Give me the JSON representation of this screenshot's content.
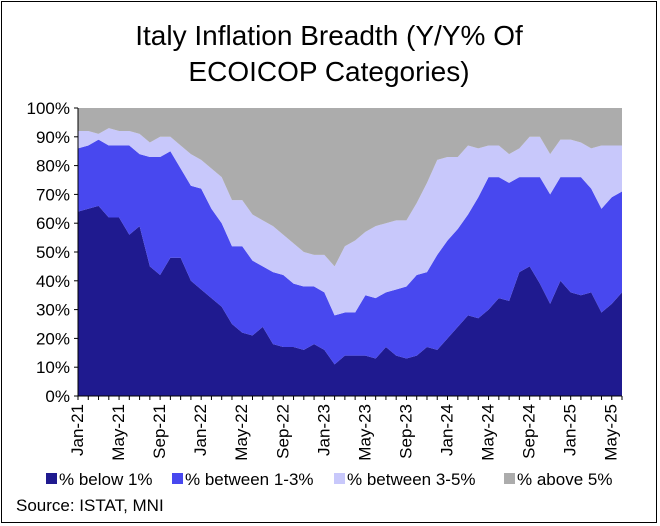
{
  "chart_data": {
    "type": "area",
    "stacked": true,
    "title_line1": "Italy Inflation Breadth (Y/Y% Of",
    "title_line2": "ECOICOP Categories)",
    "ylim": [
      0,
      100
    ],
    "yticks": [
      "0%",
      "10%",
      "20%",
      "30%",
      "40%",
      "50%",
      "60%",
      "70%",
      "80%",
      "90%",
      "100%"
    ],
    "ytick_values": [
      0,
      10,
      20,
      30,
      40,
      50,
      60,
      70,
      80,
      90,
      100
    ],
    "xtick_labels": [
      "Jan-21",
      "May-21",
      "Sep-21",
      "Jan-22",
      "May-22",
      "Sep-22",
      "Jan-23",
      "May-23",
      "Sep-23",
      "Jan-24",
      "May-24",
      "Sep-24",
      "Jan-25",
      "May-25"
    ],
    "xtick_index": [
      0,
      4,
      8,
      12,
      16,
      20,
      24,
      28,
      32,
      36,
      40,
      44,
      48,
      52
    ],
    "x_start": "Jan-21",
    "x_end": "Jul-25",
    "legend_position": "bottom",
    "series": [
      {
        "name": "% below 1%",
        "color": "#1f1a8f",
        "values": [
          64,
          65,
          66,
          62,
          62,
          56,
          59,
          45,
          42,
          48,
          48,
          40,
          37,
          34,
          31,
          25,
          22,
          21,
          24,
          18,
          17,
          17,
          16,
          18,
          16,
          11,
          14,
          14,
          14,
          13,
          17,
          14,
          13,
          14,
          17,
          16,
          20,
          24,
          28,
          27,
          30,
          34,
          33,
          43,
          45,
          39,
          32,
          40,
          36,
          35,
          36,
          29,
          32,
          36
        ]
      },
      {
        "name": "% between 1-3%",
        "color": "#4848ef",
        "values": [
          22,
          22,
          23,
          25,
          25,
          31,
          25,
          38,
          41,
          37,
          31,
          33,
          35,
          31,
          29,
          27,
          30,
          26,
          21,
          25,
          25,
          22,
          22,
          20,
          20,
          17,
          15,
          15,
          21,
          21,
          19,
          23,
          25,
          28,
          26,
          33,
          34,
          34,
          35,
          42,
          46,
          42,
          41,
          33,
          31,
          37,
          38,
          36,
          40,
          41,
          36,
          36,
          37,
          35
        ]
      },
      {
        "name": "% between 3-5%",
        "color": "#c8c8fb",
        "values": [
          6,
          5,
          2,
          6,
          5,
          5,
          7,
          5,
          7,
          5,
          8,
          11,
          10,
          14,
          16,
          16,
          16,
          16,
          16,
          16,
          14,
          14,
          12,
          11,
          13,
          17,
          23,
          25,
          22,
          25,
          24,
          24,
          23,
          25,
          31,
          33,
          29,
          25,
          24,
          17,
          11,
          11,
          10,
          10,
          14,
          14,
          14,
          13,
          13,
          12,
          14,
          22,
          18,
          16
        ]
      },
      {
        "name": "% above 5%",
        "color": "#acacac",
        "values": [
          8,
          8,
          9,
          7,
          8,
          8,
          9,
          12,
          10,
          10,
          13,
          16,
          18,
          21,
          24,
          32,
          32,
          37,
          39,
          41,
          44,
          47,
          50,
          51,
          51,
          55,
          48,
          46,
          43,
          41,
          40,
          39,
          39,
          33,
          26,
          18,
          17,
          17,
          13,
          14,
          13,
          13,
          16,
          14,
          10,
          10,
          16,
          11,
          11,
          12,
          14,
          13,
          13,
          13
        ]
      }
    ],
    "source": "Source: ISTAT, MNI"
  }
}
